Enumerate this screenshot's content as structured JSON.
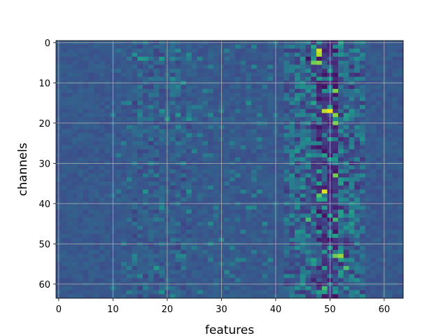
{
  "chart_data": {
    "type": "heatmap",
    "title": "",
    "xlabel": "features",
    "ylabel": "channels",
    "x_range": [
      -0.5,
      63.5
    ],
    "y_range": [
      -0.5,
      63.5
    ],
    "y_inverted": true,
    "grid": true,
    "legend": "none",
    "colormap": "viridis",
    "x_ticks": [
      0,
      10,
      20,
      30,
      40,
      50,
      60
    ],
    "y_ticks": [
      0,
      10,
      20,
      30,
      40,
      50,
      60
    ],
    "rows": 64,
    "cols": 64,
    "value_range": [
      0,
      1
    ],
    "baseline_value": 0.28,
    "hot_band_columns": [
      42,
      56
    ],
    "hot_cells": [
      {
        "channel": 2,
        "feature": 48,
        "value": 0.93
      },
      {
        "channel": 3,
        "feature": 48,
        "value": 0.88
      },
      {
        "channel": 5,
        "feature": 48,
        "value": 0.82
      },
      {
        "channel": 5,
        "feature": 47,
        "value": 0.78
      },
      {
        "channel": 4,
        "feature": 46,
        "value": 0.05
      },
      {
        "channel": 12,
        "feature": 51,
        "value": 0.8
      },
      {
        "channel": 17,
        "feature": 50,
        "value": 1.0
      },
      {
        "channel": 17,
        "feature": 49,
        "value": 0.9
      },
      {
        "channel": 18,
        "feature": 51,
        "value": 0.82
      },
      {
        "channel": 20,
        "feature": 51,
        "value": 0.8
      },
      {
        "channel": 33,
        "feature": 51,
        "value": 0.78
      },
      {
        "channel": 37,
        "feature": 49,
        "value": 0.95
      },
      {
        "channel": 38,
        "feature": 48,
        "value": 0.72
      },
      {
        "channel": 44,
        "feature": 46,
        "value": 0.7
      },
      {
        "channel": 44,
        "feature": 51,
        "value": 0.68
      },
      {
        "channel": 53,
        "feature": 52,
        "value": 0.85
      },
      {
        "channel": 53,
        "feature": 51,
        "value": 0.78
      },
      {
        "channel": 56,
        "feature": 53,
        "value": 0.72
      },
      {
        "channel": 61,
        "feature": 49,
        "value": 0.7
      }
    ],
    "secondary_band_columns": [
      14,
      24
    ],
    "secondary_hot_cells": [
      {
        "channel": 4,
        "feature": 15,
        "value": 0.55
      },
      {
        "channel": 4,
        "feature": 16,
        "value": 0.52
      },
      {
        "channel": 10,
        "feature": 23,
        "value": 0.5
      },
      {
        "channel": 41,
        "feature": 19,
        "value": 0.48
      },
      {
        "channel": 62,
        "feature": 19,
        "value": 0.5
      }
    ]
  }
}
